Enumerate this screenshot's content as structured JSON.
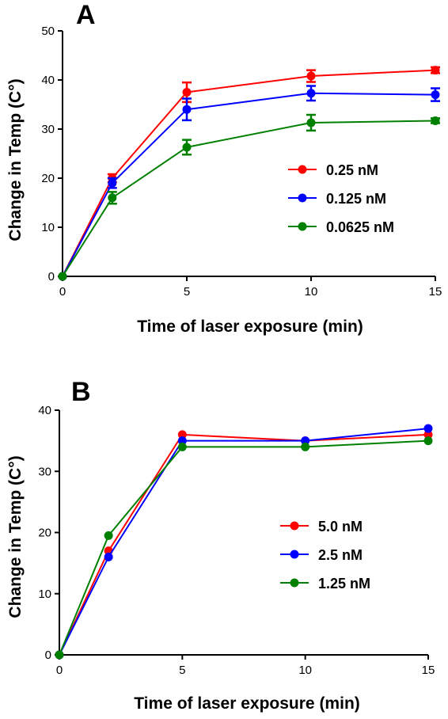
{
  "chart_data": [
    {
      "panel": "A",
      "type": "line",
      "xlabel": "Time of laser exposure (min)",
      "ylabel": "Change in Temp (C°)",
      "xlim": [
        0,
        15
      ],
      "ylim": [
        0,
        50
      ],
      "xticks": [
        0,
        5,
        10,
        15
      ],
      "yticks": [
        0,
        10,
        20,
        30,
        40,
        50
      ],
      "x": [
        0,
        2,
        5,
        10,
        15
      ],
      "legend_position": "right",
      "series": [
        {
          "name": "0.25 nM",
          "color": "#ff0000",
          "values": [
            0,
            20,
            37.5,
            40.8,
            42
          ],
          "errors": [
            0,
            0.8,
            2.0,
            1.2,
            0.6
          ]
        },
        {
          "name": "0.125 nM",
          "color": "#0000ff",
          "values": [
            0,
            19,
            34,
            37.3,
            37
          ],
          "errors": [
            0,
            1.0,
            2.2,
            1.5,
            1.3
          ]
        },
        {
          "name": "0.0625 nM",
          "color": "#008000",
          "values": [
            0,
            16,
            26.3,
            31.3,
            31.7
          ],
          "errors": [
            0,
            1.2,
            1.5,
            1.6,
            0.5
          ]
        }
      ]
    },
    {
      "panel": "B",
      "type": "line",
      "xlabel": "Time of laser exposure (min)",
      "ylabel": "Change in Temp (C°)",
      "xlim": [
        0,
        15
      ],
      "ylim": [
        0,
        40
      ],
      "xticks": [
        0,
        5,
        10,
        15
      ],
      "yticks": [
        0,
        10,
        20,
        30,
        40
      ],
      "x": [
        0,
        2,
        5,
        10,
        15
      ],
      "legend_position": "right",
      "series": [
        {
          "name": "5.0 nM",
          "color": "#ff0000",
          "values": [
            0,
            17,
            36,
            35,
            36
          ],
          "errors": [
            0,
            0,
            0,
            0,
            0
          ]
        },
        {
          "name": "2.5 nM",
          "color": "#0000ff",
          "values": [
            0,
            16,
            35,
            35,
            37
          ],
          "errors": [
            0,
            0,
            0,
            0,
            0
          ]
        },
        {
          "name": "1.25 nM",
          "color": "#008000",
          "values": [
            0,
            19.5,
            34,
            34,
            35
          ],
          "errors": [
            0,
            0,
            0,
            0,
            0
          ]
        }
      ]
    }
  ]
}
